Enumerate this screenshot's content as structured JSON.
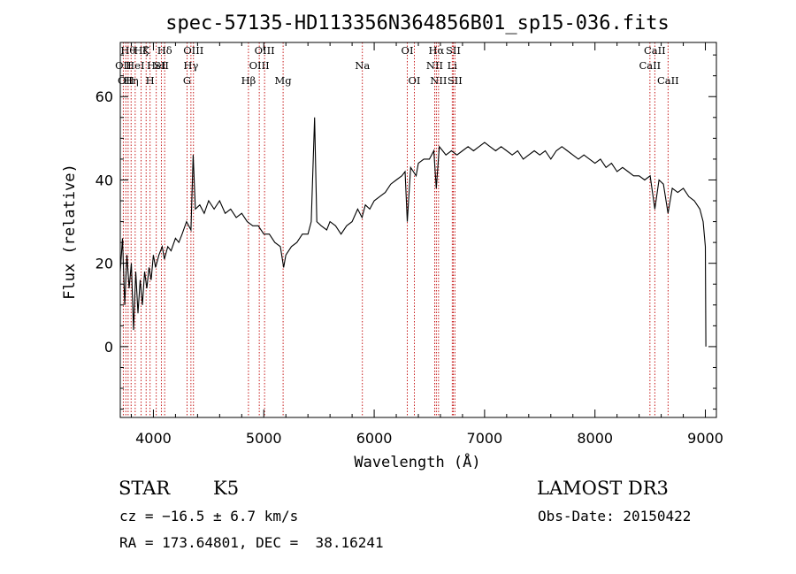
{
  "chart_data": {
    "type": "line",
    "title": "spec-57135-HD113356N364856B01_sp15-036.fits",
    "xlabel": "Wavelength (Å)",
    "ylabel": "Flux (relative)",
    "xlim": [
      3700,
      9100
    ],
    "ylim": [
      -17,
      73
    ],
    "xticks": [
      4000,
      5000,
      6000,
      7000,
      8000,
      9000
    ],
    "yticks": [
      0,
      20,
      40,
      60
    ],
    "series": [
      {
        "points": [
          [
            3700,
            18
          ],
          [
            3720,
            26
          ],
          [
            3740,
            10
          ],
          [
            3760,
            22
          ],
          [
            3780,
            14
          ],
          [
            3800,
            20
          ],
          [
            3820,
            4
          ],
          [
            3840,
            18
          ],
          [
            3860,
            8
          ],
          [
            3880,
            16
          ],
          [
            3900,
            10
          ],
          [
            3920,
            18
          ],
          [
            3940,
            14
          ],
          [
            3960,
            19
          ],
          [
            3980,
            16
          ],
          [
            4000,
            22
          ],
          [
            4020,
            19
          ],
          [
            4050,
            22
          ],
          [
            4080,
            24
          ],
          [
            4100,
            21
          ],
          [
            4130,
            24
          ],
          [
            4160,
            23
          ],
          [
            4200,
            26
          ],
          [
            4230,
            25
          ],
          [
            4260,
            27
          ],
          [
            4300,
            30
          ],
          [
            4340,
            28
          ],
          [
            4360,
            46
          ],
          [
            4380,
            33
          ],
          [
            4420,
            34
          ],
          [
            4460,
            32
          ],
          [
            4500,
            35
          ],
          [
            4550,
            33
          ],
          [
            4600,
            35
          ],
          [
            4650,
            32
          ],
          [
            4700,
            33
          ],
          [
            4750,
            31
          ],
          [
            4800,
            32
          ],
          [
            4850,
            30
          ],
          [
            4900,
            29
          ],
          [
            4950,
            29
          ],
          [
            5000,
            27
          ],
          [
            5050,
            27
          ],
          [
            5100,
            25
          ],
          [
            5150,
            24
          ],
          [
            5180,
            19
          ],
          [
            5200,
            22
          ],
          [
            5250,
            24
          ],
          [
            5300,
            25
          ],
          [
            5350,
            27
          ],
          [
            5400,
            27
          ],
          [
            5430,
            30
          ],
          [
            5460,
            55
          ],
          [
            5480,
            30
          ],
          [
            5520,
            29
          ],
          [
            5570,
            28
          ],
          [
            5600,
            30
          ],
          [
            5650,
            29
          ],
          [
            5700,
            27
          ],
          [
            5750,
            29
          ],
          [
            5800,
            30
          ],
          [
            5850,
            33
          ],
          [
            5890,
            31
          ],
          [
            5920,
            34
          ],
          [
            5960,
            33
          ],
          [
            6000,
            35
          ],
          [
            6050,
            36
          ],
          [
            6100,
            37
          ],
          [
            6150,
            39
          ],
          [
            6200,
            40
          ],
          [
            6250,
            41
          ],
          [
            6280,
            42
          ],
          [
            6300,
            30
          ],
          [
            6330,
            43
          ],
          [
            6380,
            41
          ],
          [
            6400,
            44
          ],
          [
            6450,
            45
          ],
          [
            6500,
            45
          ],
          [
            6540,
            47
          ],
          [
            6563,
            38
          ],
          [
            6590,
            48
          ],
          [
            6620,
            47
          ],
          [
            6650,
            46
          ],
          [
            6700,
            47
          ],
          [
            6750,
            46
          ],
          [
            6800,
            47
          ],
          [
            6850,
            48
          ],
          [
            6900,
            47
          ],
          [
            6950,
            48
          ],
          [
            7000,
            49
          ],
          [
            7050,
            48
          ],
          [
            7100,
            47
          ],
          [
            7150,
            48
          ],
          [
            7200,
            47
          ],
          [
            7250,
            46
          ],
          [
            7300,
            47
          ],
          [
            7350,
            45
          ],
          [
            7400,
            46
          ],
          [
            7450,
            47
          ],
          [
            7500,
            46
          ],
          [
            7550,
            47
          ],
          [
            7600,
            45
          ],
          [
            7650,
            47
          ],
          [
            7700,
            48
          ],
          [
            7750,
            47
          ],
          [
            7800,
            46
          ],
          [
            7850,
            45
          ],
          [
            7900,
            46
          ],
          [
            7950,
            45
          ],
          [
            8000,
            44
          ],
          [
            8050,
            45
          ],
          [
            8100,
            43
          ],
          [
            8150,
            44
          ],
          [
            8200,
            42
          ],
          [
            8250,
            43
          ],
          [
            8300,
            42
          ],
          [
            8350,
            41
          ],
          [
            8400,
            41
          ],
          [
            8450,
            40
          ],
          [
            8500,
            41
          ],
          [
            8542,
            33
          ],
          [
            8580,
            40
          ],
          [
            8620,
            39
          ],
          [
            8662,
            32
          ],
          [
            8700,
            38
          ],
          [
            8750,
            37
          ],
          [
            8800,
            38
          ],
          [
            8850,
            36
          ],
          [
            8900,
            35
          ],
          [
            8950,
            33
          ],
          [
            8980,
            30
          ],
          [
            9000,
            24
          ],
          [
            9005,
            0
          ]
        ]
      }
    ],
    "lines": [
      {
        "w": 3727,
        "label": "OII",
        "row": 2
      },
      {
        "w": 3750,
        "label": "OII",
        "row": 3
      },
      {
        "w": 3771,
        "label": "Hθ",
        "row": 1
      },
      {
        "w": 3798,
        "label": "Hη",
        "row": 3
      },
      {
        "w": 3835,
        "label": "HeI",
        "row": 2
      },
      {
        "w": 3889,
        "label": "Hζ",
        "row": 1
      },
      {
        "w": 3934,
        "label": "K",
        "row": 1
      },
      {
        "w": 3970,
        "label": "H",
        "row": 3
      },
      {
        "w": 4026,
        "label": "HeI",
        "row": 2
      },
      {
        "w": 4072,
        "label": "SII",
        "row": 2
      },
      {
        "w": 4102,
        "label": "Hδ",
        "row": 1
      },
      {
        "w": 4305,
        "label": "G",
        "row": 3
      },
      {
        "w": 4340,
        "label": "Hγ",
        "row": 2
      },
      {
        "w": 4363,
        "label": "OIII",
        "row": 1
      },
      {
        "w": 4861,
        "label": "Hβ",
        "row": 3
      },
      {
        "w": 4959,
        "label": "OIII",
        "row": 2
      },
      {
        "w": 5007,
        "label": "OIII",
        "row": 1
      },
      {
        "w": 5175,
        "label": "Mg",
        "row": 3
      },
      {
        "w": 5893,
        "label": "Na",
        "row": 2
      },
      {
        "w": 6300,
        "label": "OI",
        "row": 1
      },
      {
        "w": 6364,
        "label": "OI",
        "row": 3
      },
      {
        "w": 6548,
        "label": "NII",
        "row": 2
      },
      {
        "w": 6563,
        "label": "Hα",
        "row": 1
      },
      {
        "w": 6583,
        "label": "NII",
        "row": 3
      },
      {
        "w": 6707,
        "label": "Li",
        "row": 2
      },
      {
        "w": 6716,
        "label": "SII",
        "row": 1
      },
      {
        "w": 6731,
        "label": "SII",
        "row": 3
      },
      {
        "w": 8498,
        "label": "CaII",
        "row": 2
      },
      {
        "w": 8542,
        "label": "CaII",
        "row": 1
      },
      {
        "w": 8662,
        "label": "CaII",
        "row": 3
      }
    ]
  },
  "info": {
    "class": "STAR",
    "subclass": "K5",
    "survey": "LAMOST DR3",
    "cz": "cz = −16.5 ± 6.7 km/s",
    "obs_date": "Obs-Date: 20150422",
    "radec": "RA = 173.64801, DEC =  38.16241"
  }
}
